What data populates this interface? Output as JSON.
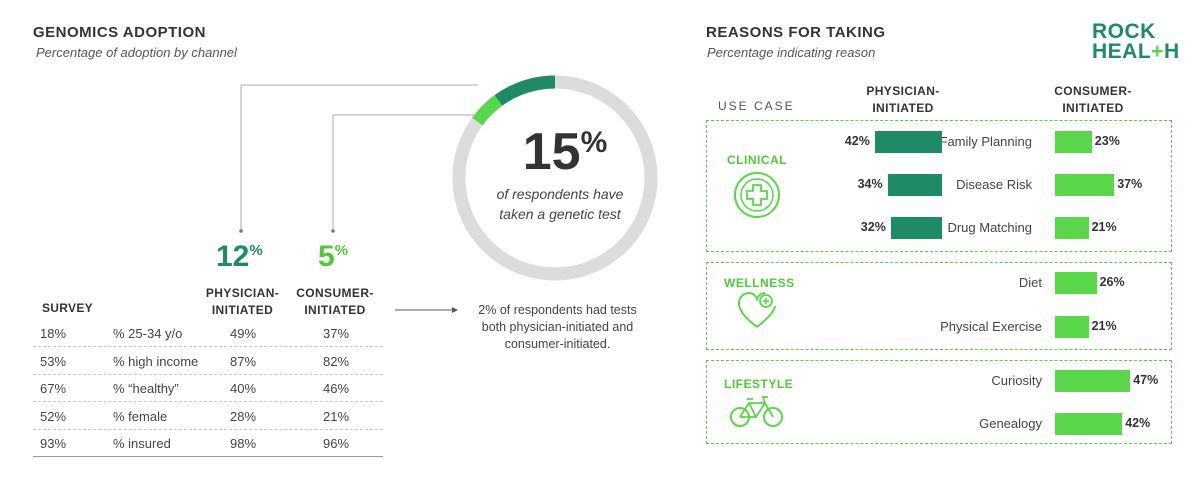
{
  "left": {
    "title": "GENOMICS ADOPTION",
    "subtitle": "Percentage of adoption by channel",
    "physician": {
      "value": "12",
      "unit": "%",
      "label_line1": "PHYSICIAN-",
      "label_line2": "INITIATED"
    },
    "consumer": {
      "value": "5",
      "unit": "%",
      "label_line1": "CONSUMER-",
      "label_line2": "INITIATED"
    },
    "survey_header": "SURVEY",
    "rows": [
      {
        "survey": "18%",
        "label": "% 25-34 y/o",
        "physician": "49%",
        "consumer": "37%"
      },
      {
        "survey": "53%",
        "label": "% high income",
        "physician": "87%",
        "consumer": "82%"
      },
      {
        "survey": "67%",
        "label": "% “healthy”",
        "physician": "40%",
        "consumer": "46%"
      },
      {
        "survey": "52%",
        "label": "% female",
        "physician": "28%",
        "consumer": "21%"
      },
      {
        "survey": "93%",
        "label": "% insured",
        "physician": "98%",
        "consumer": "96%"
      }
    ]
  },
  "donut": {
    "value": "15",
    "unit": "%",
    "text_line1": "of respondents have",
    "text_line2": "taken a genetic test",
    "note_line1": "2% of respondents had tests",
    "note_line2": "both physician-initiated and",
    "note_line3": "consumer-initiated."
  },
  "right": {
    "title": "REASONS FOR TAKING",
    "subtitle": "Percentage indicating reason",
    "use_case_label": "USE CASE",
    "physician_line1": "PHYSICIAN-",
    "physician_line2": "INITIATED",
    "consumer_line1": "CONSUMER-",
    "consumer_line2": "INITIATED"
  },
  "logo": {
    "line1": "ROCK",
    "line2_a": "HEAL",
    "line2_b": "+",
    "line2_c": "H"
  },
  "colors": {
    "dark_green": "#1f8a66",
    "light_green": "#5ad64a",
    "gray_ring": "#dcdcdc"
  },
  "chart_data": {
    "type": "bar",
    "title": "REASONS FOR TAKING",
    "subtitle": "Percentage indicating reason",
    "groups": [
      {
        "name": "CLINICAL",
        "icon": "medical-cross-icon",
        "reasons": [
          {
            "label": "Family Planning",
            "physician": 42,
            "consumer": 23
          },
          {
            "label": "Disease Risk",
            "physician": 34,
            "consumer": 37
          },
          {
            "label": "Drug Matching",
            "physician": 32,
            "consumer": 21
          }
        ]
      },
      {
        "name": "WELLNESS",
        "icon": "heart-plus-icon",
        "reasons": [
          {
            "label": "Diet",
            "consumer": 26
          },
          {
            "label": "Physical Exercise",
            "consumer": 21
          }
        ]
      },
      {
        "name": "LIFESTYLE",
        "icon": "bicycle-icon",
        "reasons": [
          {
            "label": "Curiosity",
            "consumer": 47
          },
          {
            "label": "Genealogy",
            "consumer": 42
          }
        ]
      }
    ],
    "donut": {
      "value": 15,
      "physician_share": 12,
      "consumer_share": 5
    }
  }
}
